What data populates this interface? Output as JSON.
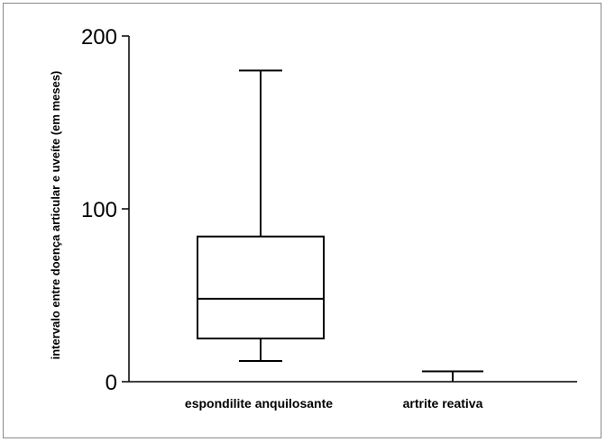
{
  "chart_data": {
    "type": "box",
    "title": "",
    "xlabel": "",
    "ylabel": "intervalo entre doença articular e uveíte (em meses)",
    "ylim": [
      0,
      200
    ],
    "yticks": [
      0,
      100,
      200
    ],
    "categories": [
      "espondilite anquilosante",
      "artrite reativa"
    ],
    "boxes": [
      {
        "category": "espondilite anquilosante",
        "min": 12,
        "q1": 25,
        "median": 48,
        "q3": 84,
        "max": 180
      },
      {
        "category": "artrite reativa",
        "min": 6,
        "q1": 6,
        "median": 6,
        "q3": 6,
        "max": 6
      }
    ],
    "grid": false,
    "legend": "none"
  }
}
